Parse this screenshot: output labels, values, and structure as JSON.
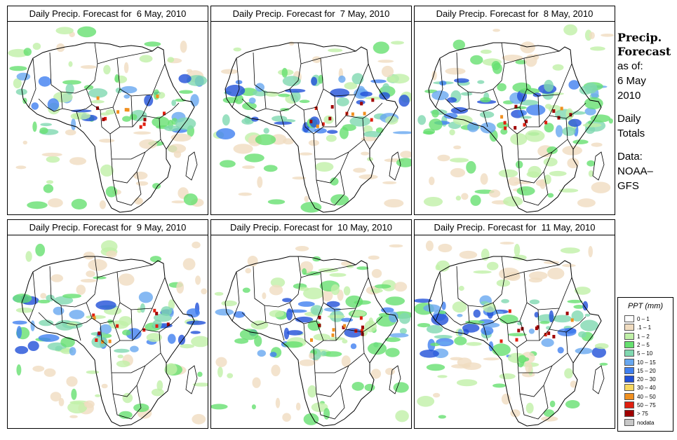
{
  "panels": [
    {
      "title": "Daily Precip. Forecast for  6 May, 2010"
    },
    {
      "title": "Daily Precip. Forecast for  7 May, 2010"
    },
    {
      "title": "Daily Precip. Forecast for  8 May, 2010"
    },
    {
      "title": "Daily Precip. Forecast for  9 May, 2010"
    },
    {
      "title": "Daily Precip. Forecast for  10 May, 2010"
    },
    {
      "title": "Daily Precip. Forecast for  11 May, 2010"
    }
  ],
  "side": {
    "heading1": "Precip.",
    "heading2": "Forecast",
    "asof": "as of:",
    "date1": "6 May",
    "date2": "2010",
    "daily1": "Daily",
    "daily2": "Totals",
    "data1": "Data:",
    "data2": "NOAA–",
    "data3": "GFS"
  },
  "legend": {
    "title": "PPT (mm)",
    "items": [
      {
        "label": "0 – 1",
        "color": "#ffffff"
      },
      {
        "label": ".1 – 1",
        "color": "#f0dcc0"
      },
      {
        "label": "1 – 2",
        "color": "#c0f0a8"
      },
      {
        "label": "2 – 5",
        "color": "#66e070"
      },
      {
        "label": "5 – 10",
        "color": "#80d8b0"
      },
      {
        "label": "10 – 15",
        "color": "#68a8f0"
      },
      {
        "label": "15 – 20",
        "color": "#4080f0"
      },
      {
        "label": "20 – 30",
        "color": "#2050d8"
      },
      {
        "label": "30 – 40",
        "color": "#f8d860"
      },
      {
        "label": "40 – 50",
        "color": "#f09020"
      },
      {
        "label": "50 – 75",
        "color": "#e02010"
      },
      {
        "label": "> 75",
        "color": "#a00000"
      },
      {
        "label": "nodata",
        "color": "#c8c8c8"
      }
    ]
  }
}
